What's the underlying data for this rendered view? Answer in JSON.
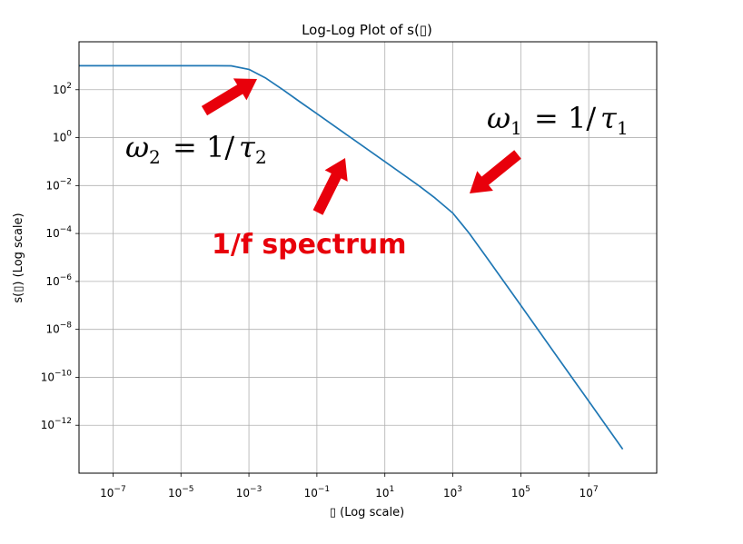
{
  "chart_data": {
    "type": "line",
    "title": "Log-Log Plot of s(▯)",
    "xlabel": "▯ (Log scale)",
    "ylabel": "s(▯) (Log scale)",
    "xscale": "log",
    "yscale": "log",
    "xlim": [
      1e-08,
      1000000000.0
    ],
    "ylim": [
      1e-14,
      10000.0
    ],
    "grid": true,
    "xticks": [
      {
        "value": 1e-07,
        "base": "10",
        "exp": "−7"
      },
      {
        "value": 1e-05,
        "base": "10",
        "exp": "−5"
      },
      {
        "value": 0.001,
        "base": "10",
        "exp": "−3"
      },
      {
        "value": 0.1,
        "base": "10",
        "exp": "−1"
      },
      {
        "value": 10.0,
        "base": "10",
        "exp": "1"
      },
      {
        "value": 1000.0,
        "base": "10",
        "exp": "3"
      },
      {
        "value": 100000.0,
        "base": "10",
        "exp": "5"
      },
      {
        "value": 10000000.0,
        "base": "10",
        "exp": "7"
      }
    ],
    "yticks": [
      {
        "value": 100.0,
        "base": "10",
        "exp": "2"
      },
      {
        "value": 1.0,
        "base": "10",
        "exp": "0"
      },
      {
        "value": 0.01,
        "base": "10",
        "exp": "−2"
      },
      {
        "value": 0.0001,
        "base": "10",
        "exp": "−4"
      },
      {
        "value": 1e-06,
        "base": "10",
        "exp": "−6"
      },
      {
        "value": 1e-08,
        "base": "10",
        "exp": "−8"
      },
      {
        "value": 1e-10,
        "base": "10",
        "exp": "−10"
      },
      {
        "value": 1e-12,
        "base": "10",
        "exp": "−12"
      }
    ],
    "series": [
      {
        "color": "#1f77b4",
        "x": [
          1e-08,
          1e-07,
          1e-06,
          1e-05,
          0.0001,
          0.0003,
          0.001,
          0.003,
          0.01,
          0.03,
          0.1,
          1.0,
          10.0,
          100.0,
          300.0,
          1000.0,
          3000.0,
          10000.0,
          100000.0,
          1000000.0,
          10000000.0,
          100000000.0
        ],
        "y": [
          1000,
          1000,
          1000,
          1000,
          999,
          990,
          707,
          316,
          100,
          33,
          10,
          1,
          0.1,
          0.0099,
          0.003,
          0.00071,
          0.000105,
          9.9e-06,
          1e-07,
          1e-09,
          1e-11,
          1e-13
        ]
      }
    ],
    "annotations": {
      "omega2": {
        "sym": "ω",
        "sub": "2",
        "eq": "= 1/",
        "tau": "τ",
        "tsub": "2"
      },
      "omega1": {
        "sym": "ω",
        "sub": "1",
        "eq": "= 1/",
        "tau": "τ",
        "tsub": "1"
      },
      "spectrum": "1/f spectrum"
    },
    "annotation_color": "#e8000b"
  }
}
